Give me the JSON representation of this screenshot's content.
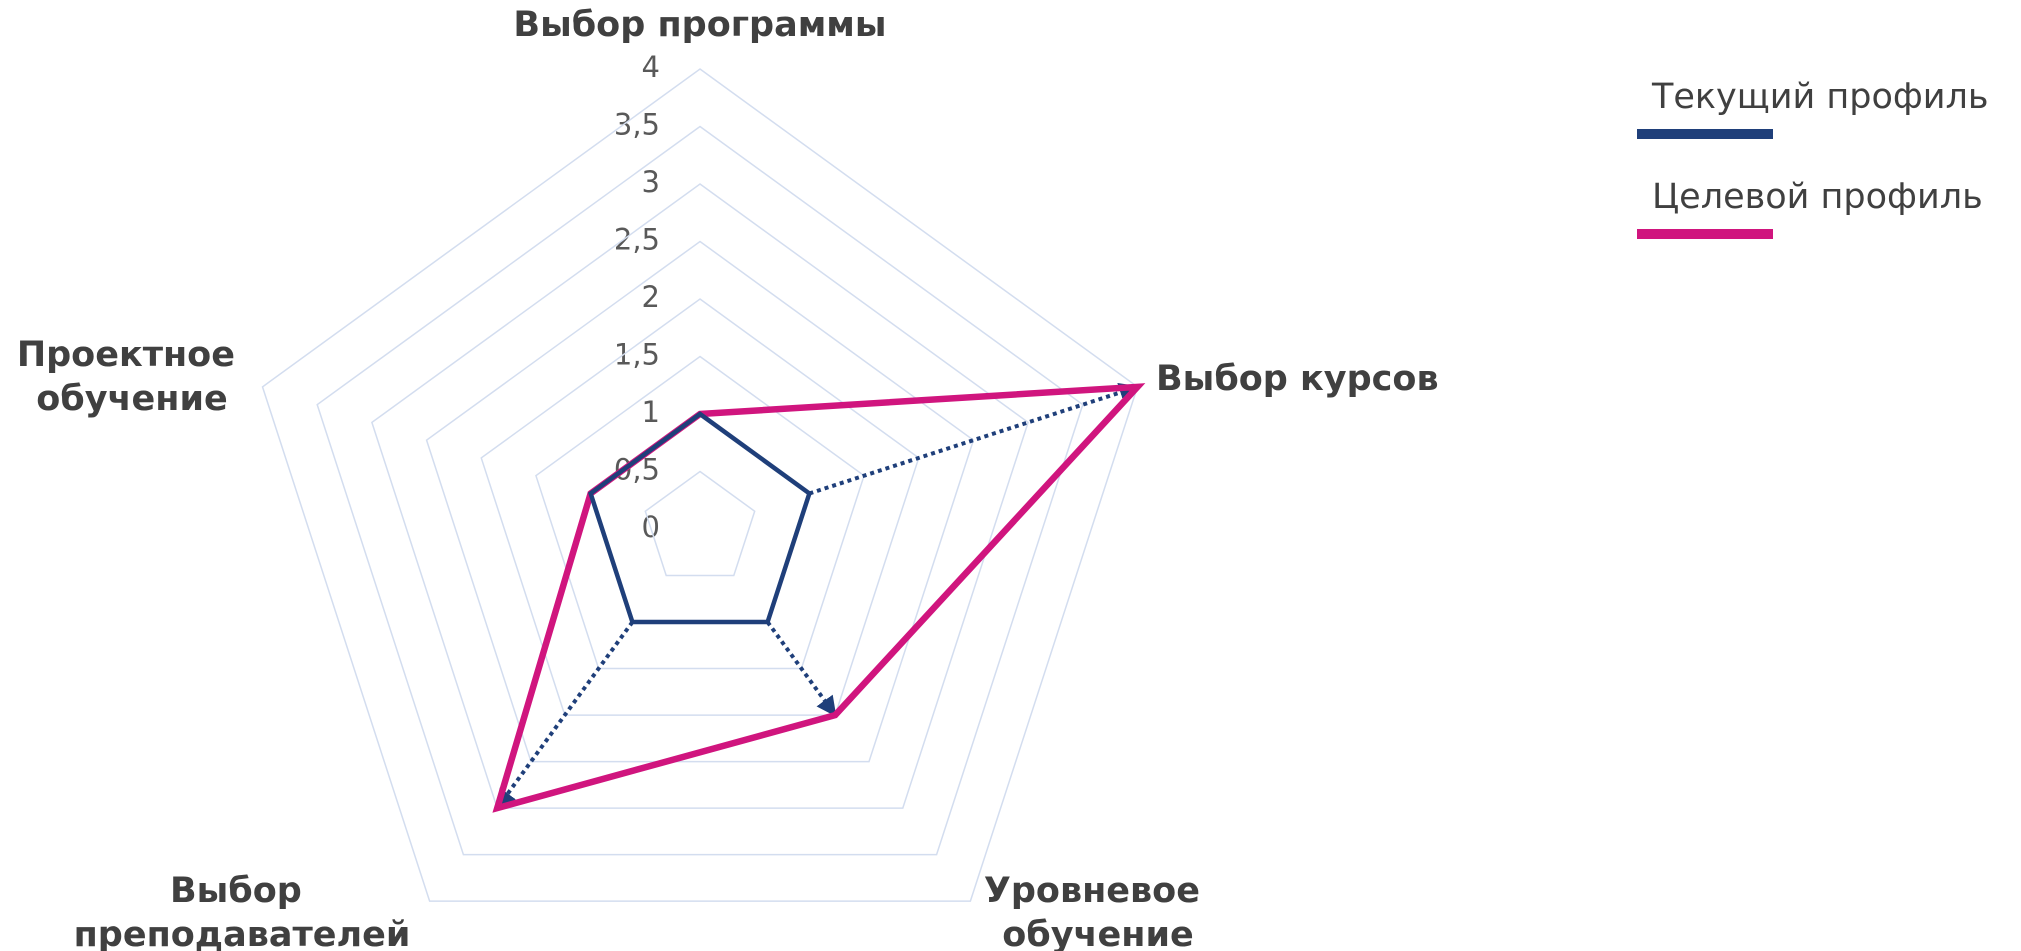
{
  "chart_data": {
    "type": "radar",
    "categories": [
      "Выбор программы",
      "Выбор курсов",
      "Уровневое обучение",
      "Выбор преподавателей",
      "Проектное обучение"
    ],
    "series": [
      {
        "name": "Текущий профиль",
        "color": "#1f3f7a",
        "values": [
          1,
          1,
          1,
          1,
          1
        ]
      },
      {
        "name": "Целевой профиль",
        "color": "#d0157e",
        "values": [
          1,
          4,
          2,
          3,
          1
        ]
      }
    ],
    "rlim": [
      0,
      4
    ],
    "rticks": [
      0,
      {
        "value": 0.5,
        "label": "0,5"
      },
      1,
      {
        "value": 1.5,
        "label": "1,5"
      },
      2,
      {
        "value": 2.5,
        "label": "2,5"
      },
      3,
      {
        "value": 3.5,
        "label": "3,5"
      },
      4
    ],
    "grid": true,
    "legend": "upper right"
  }
}
